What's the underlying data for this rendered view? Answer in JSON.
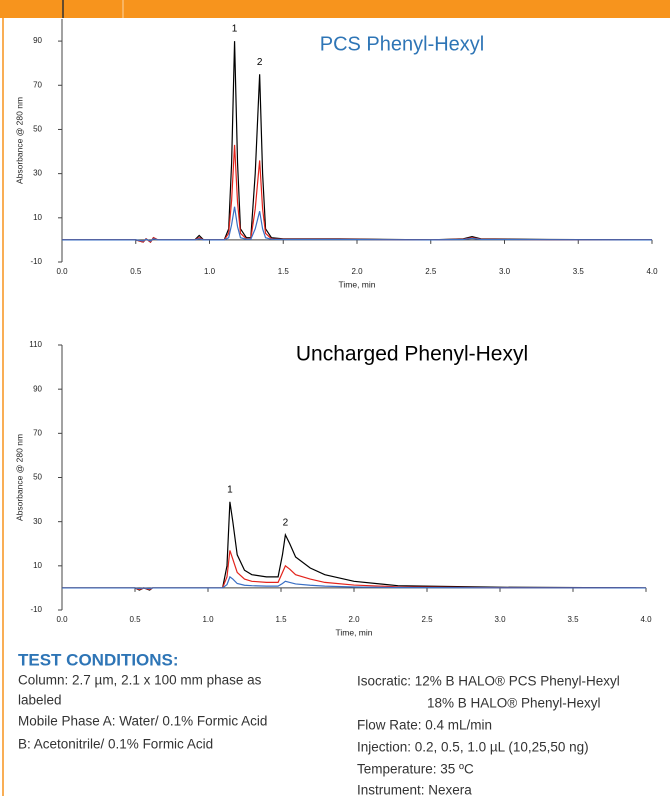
{
  "chart_data": [
    {
      "type": "line",
      "title": "PCS Phenyl-Hexyl",
      "title_color": "#2e75b6",
      "y_label": "Absorbance @ 280 nm",
      "x_label": "Time, min",
      "annotations": [
        "1",
        "2"
      ],
      "x": [
        0,
        0.25,
        0.5,
        0.55,
        0.57,
        0.6,
        0.62,
        0.65,
        0.9,
        0.93,
        0.96,
        1.1,
        1.13,
        1.15,
        1.17,
        1.19,
        1.21,
        1.25,
        1.28,
        1.31,
        1.34,
        1.36,
        1.38,
        1.42,
        1.5,
        1.88,
        2.5,
        2.72,
        2.78,
        2.84,
        3.3,
        4.0
      ],
      "series": [
        {
          "color": "#000000",
          "values": [
            0,
            0,
            0,
            -1,
            0.5,
            -1,
            1,
            0,
            0,
            2,
            0,
            0,
            5,
            35,
            90,
            35,
            5,
            1,
            1,
            30,
            75,
            30,
            5,
            1,
            0.5,
            0.5,
            0,
            0.5,
            1.5,
            0.5,
            0.2,
            0
          ]
        },
        {
          "color": "#e3231b",
          "values": [
            0,
            0,
            0,
            -1,
            0.5,
            -1,
            1,
            0,
            0,
            1,
            0,
            0,
            3,
            18,
            43,
            17,
            3,
            0.5,
            0.5,
            14,
            36,
            14,
            3,
            0.5,
            0.3,
            0.3,
            0,
            0.3,
            1,
            0.3,
            0.1,
            0
          ]
        },
        {
          "color": "#3a6fc4",
          "values": [
            0,
            0,
            0,
            -0.5,
            0.3,
            -0.5,
            0.5,
            0,
            0,
            0.5,
            0,
            0,
            1,
            7,
            15,
            6,
            1,
            0.3,
            0.3,
            5,
            13,
            5,
            1,
            0.3,
            0.2,
            0.2,
            0,
            0.2,
            0.7,
            0.2,
            0.1,
            0
          ]
        }
      ],
      "xlim": [
        0,
        4
      ],
      "xticks": [
        {
          "value": 0,
          "label": "0.0"
        },
        {
          "value": 0.5,
          "label": "0.5"
        },
        {
          "value": 1,
          "label": "1.0"
        },
        {
          "value": 1.5,
          "label": "1.5"
        },
        {
          "value": 2,
          "label": "2.0"
        },
        {
          "value": 2.5,
          "label": "2.5"
        },
        {
          "value": 3,
          "label": "3.0"
        },
        {
          "value": 3.5,
          "label": "3.5"
        },
        {
          "value": 4,
          "label": "4.0"
        }
      ],
      "ylim": [
        -10,
        100
      ],
      "yticks": [
        -10,
        10,
        30,
        50,
        70,
        90
      ],
      "grid": false
    },
    {
      "type": "line",
      "title": "Uncharged Phenyl-Hexyl",
      "title_color": "#000000",
      "y_label": "Absorbance @ 280 nm",
      "x_label": "Time, min",
      "annotations": [
        "1",
        "2"
      ],
      "x": [
        0,
        0.5,
        0.53,
        0.56,
        0.6,
        0.62,
        1.1,
        1.13,
        1.15,
        1.17,
        1.2,
        1.25,
        1.3,
        1.4,
        1.48,
        1.51,
        1.53,
        1.56,
        1.6,
        1.7,
        1.8,
        2.0,
        2.3,
        3.0,
        4.0
      ],
      "series": [
        {
          "color": "#000000",
          "values": [
            0,
            0,
            -1,
            0,
            -1,
            0,
            0,
            10,
            39,
            30,
            15,
            8,
            6,
            5,
            5,
            15,
            24,
            20,
            14,
            9,
            6,
            3,
            1,
            0.3,
            0
          ]
        },
        {
          "color": "#e3231b",
          "values": [
            0,
            0,
            -0.7,
            0,
            -0.7,
            0,
            0,
            5,
            17,
            13,
            7,
            4,
            3,
            2.5,
            2.5,
            7,
            10,
            8.5,
            6,
            4,
            2.5,
            1.3,
            0.5,
            0.1,
            0
          ]
        },
        {
          "color": "#3a6fc4",
          "values": [
            0,
            0,
            -0.3,
            0,
            -0.3,
            0,
            0,
            1.5,
            5,
            4,
            2,
            1.2,
            1,
            0.8,
            0.8,
            2,
            3,
            2.5,
            1.8,
            1.2,
            0.8,
            0.4,
            0.2,
            0.05,
            0
          ]
        }
      ],
      "xlim": [
        0,
        4
      ],
      "xticks": [
        {
          "value": 0,
          "label": "0.0"
        },
        {
          "value": 0.5,
          "label": "0.5"
        },
        {
          "value": 1,
          "label": "1.0"
        },
        {
          "value": 1.5,
          "label": "1.5"
        },
        {
          "value": 2,
          "label": "2.0"
        },
        {
          "value": 2.5,
          "label": "2.5"
        },
        {
          "value": 3,
          "label": "3.0"
        },
        {
          "value": 3.5,
          "label": "3.5"
        },
        {
          "value": 4,
          "label": "4.0"
        }
      ],
      "ylim": [
        -10,
        110
      ],
      "yticks": [
        -10,
        10,
        30,
        50,
        70,
        90,
        110
      ],
      "grid": false
    }
  ],
  "test_conditions": {
    "heading": "TEST CONDITIONS:",
    "left": [
      "Column: 2.7 µm, 2.1 x 100 mm phase as",
      "labeled",
      "Mobile Phase A: Water/ 0.1% Formic Acid",
      "B: Acetonitrile/ 0.1% Formic Acid"
    ],
    "right": [
      "Isocratic: 12% B HALO® PCS Phenyl-Hexyl",
      "18% B HALO® Phenyl-Hexyl",
      "Flow Rate: 0.4 mL/min",
      "Injection: 0.2, 0.5, 1.0 µL (10,25,50 ng)",
      "Temperature: 35 ºC",
      "Instrument: Nexera"
    ]
  }
}
